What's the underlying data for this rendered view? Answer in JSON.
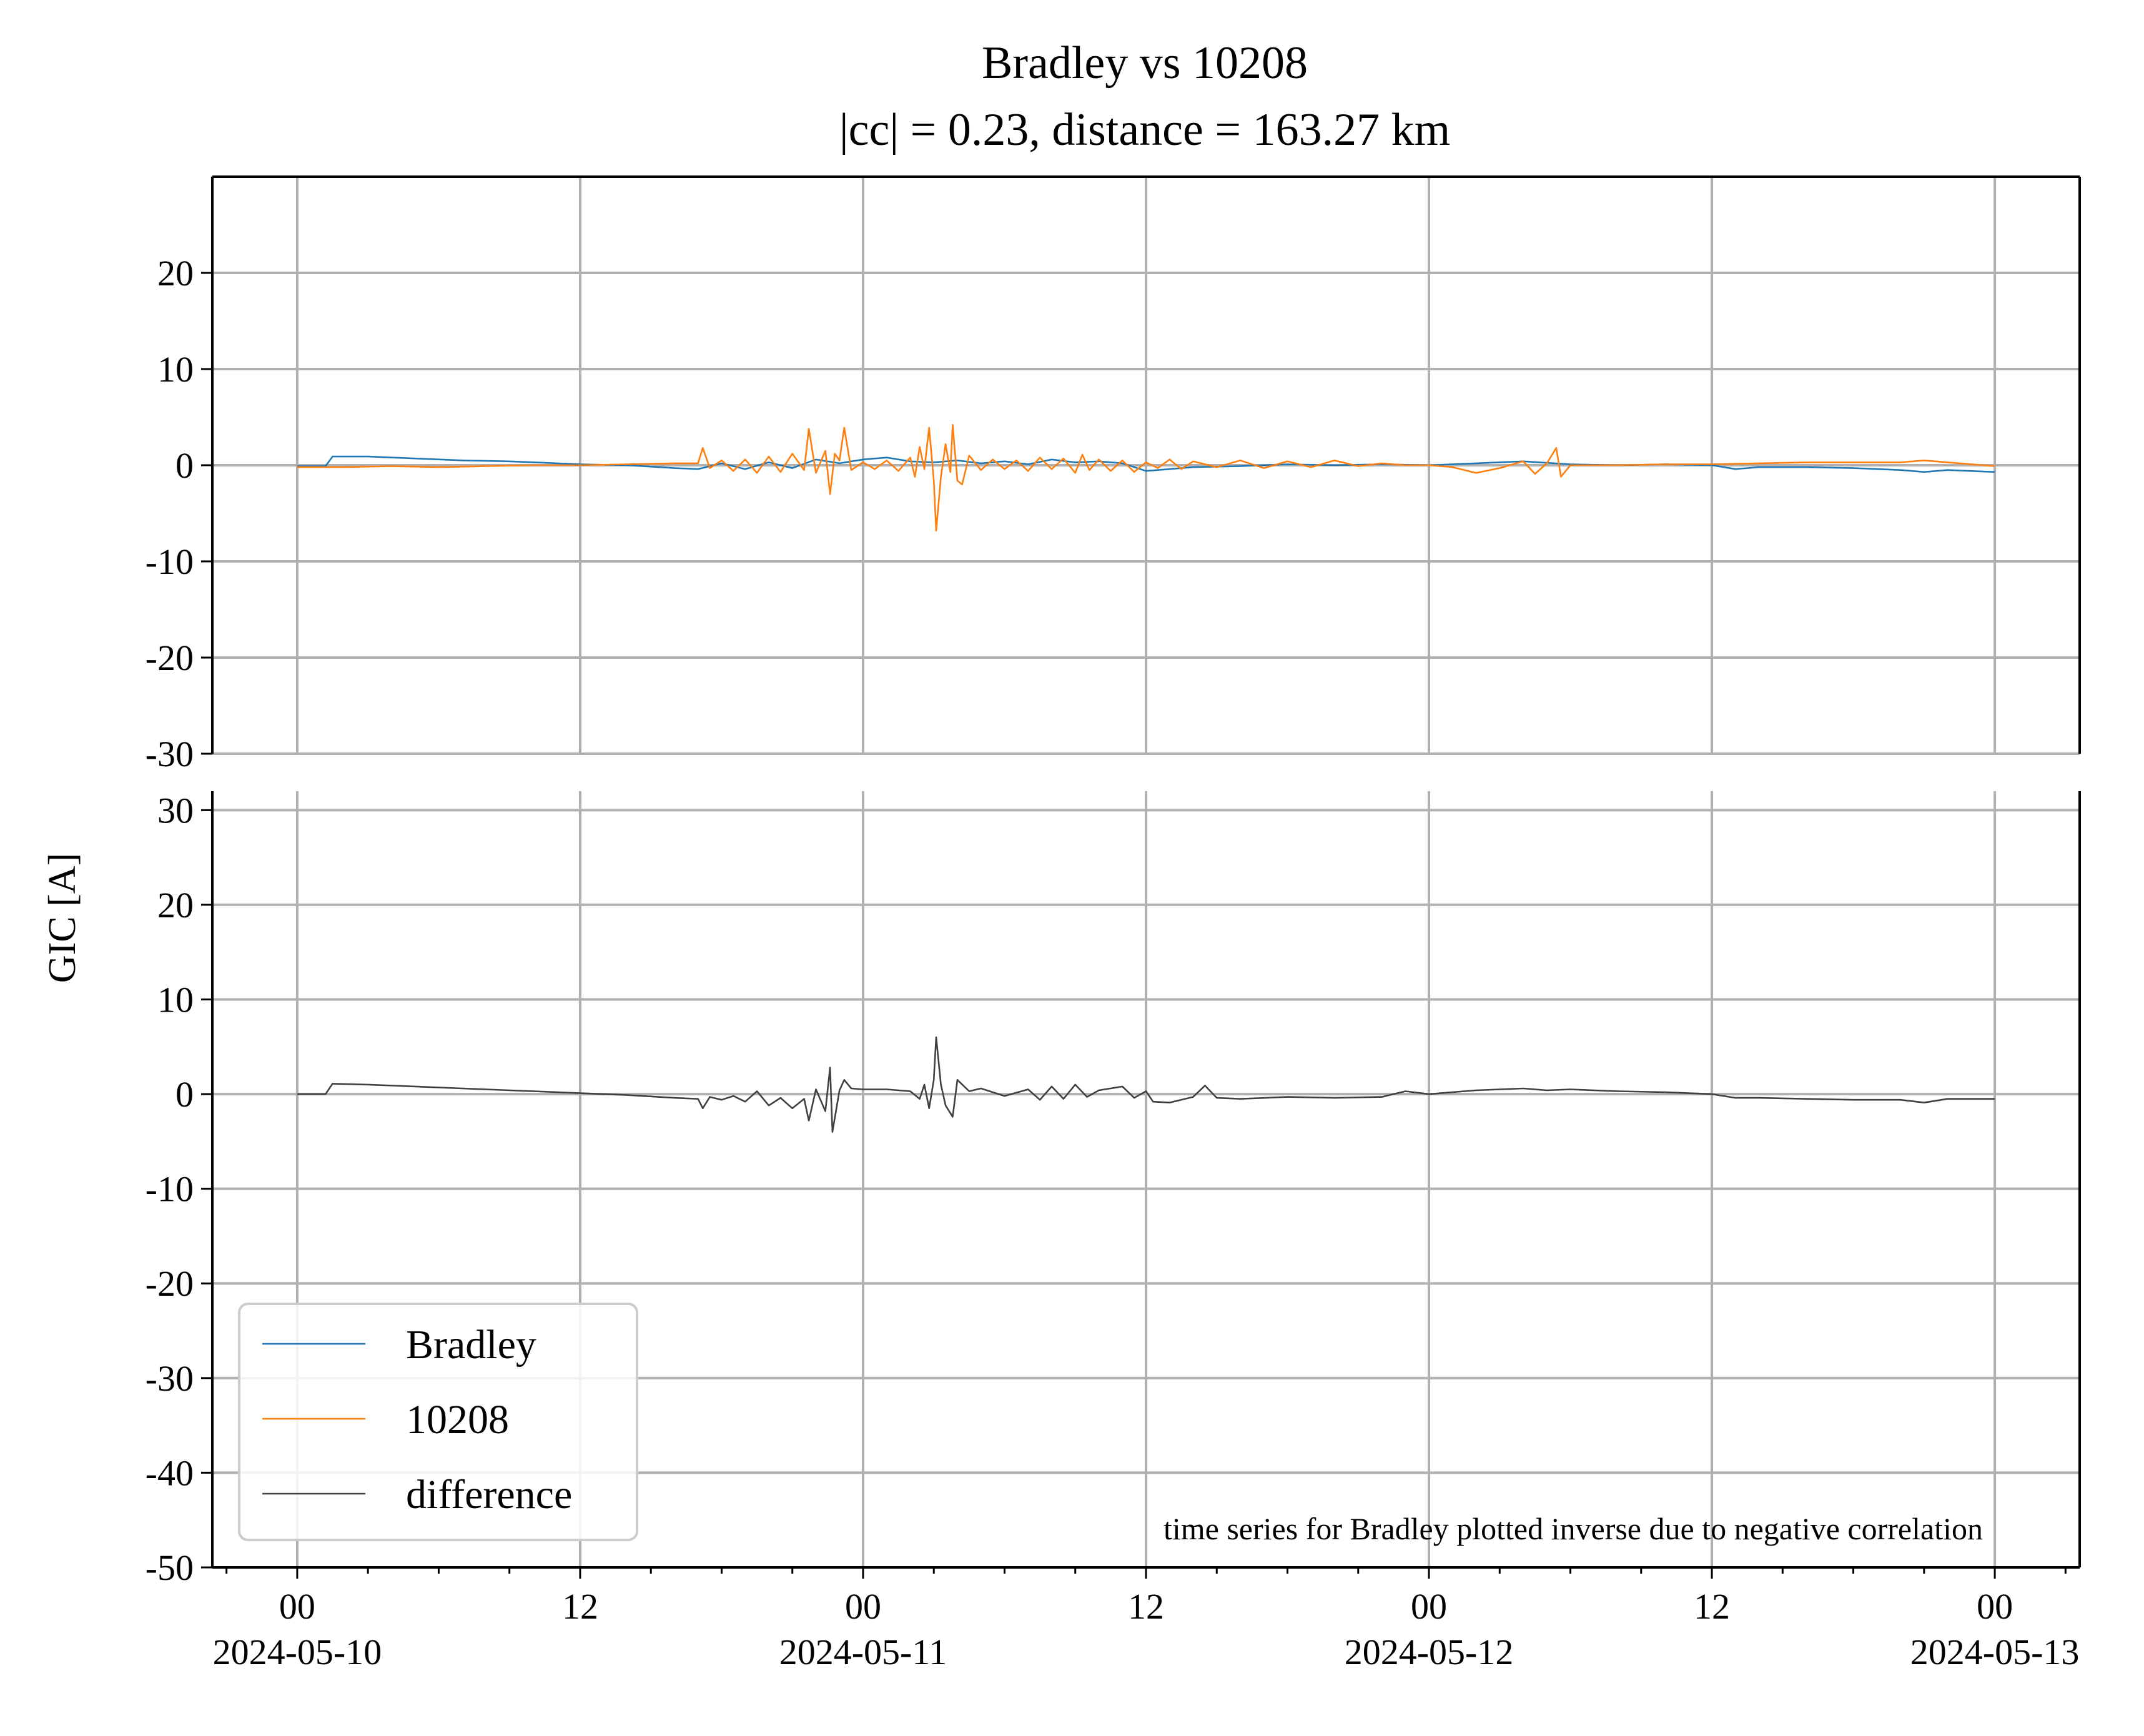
{
  "chart_data": {
    "type": "line",
    "title": "Bradley vs 10208",
    "subtitle": "|cc| = 0.23, distance = 163.27 km",
    "ylabel": "GIC [A]",
    "xlabel": "",
    "grid": true,
    "x_ticks": [
      {
        "time": "00",
        "date": "2024-05-10",
        "hours": 0
      },
      {
        "time": "12",
        "date": "",
        "hours": 12
      },
      {
        "time": "00",
        "date": "2024-05-11",
        "hours": 24
      },
      {
        "time": "12",
        "date": "",
        "hours": 36
      },
      {
        "time": "00",
        "date": "2024-05-12",
        "hours": 48
      },
      {
        "time": "12",
        "date": "",
        "hours": 60
      },
      {
        "time": "00",
        "date": "2024-05-13",
        "hours": 72
      }
    ],
    "xlim_hours": [
      -3.6,
      75.6
    ],
    "panels": [
      {
        "id": "top",
        "ylim": [
          -30,
          30
        ],
        "y_ticks": [
          20,
          10,
          0,
          -10,
          -20,
          -30
        ],
        "series": [
          {
            "name": "Bradley",
            "color": "#1f77b4",
            "points": [
              [
                0,
                -0.1
              ],
              [
                1.2,
                -0.1
              ],
              [
                1.5,
                0.9
              ],
              [
                3,
                0.9
              ],
              [
                5,
                0.7
              ],
              [
                7,
                0.5
              ],
              [
                9,
                0.4
              ],
              [
                11,
                0.2
              ],
              [
                12,
                0.1
              ],
              [
                14,
                0.0
              ],
              [
                16,
                -0.3
              ],
              [
                17,
                -0.4
              ],
              [
                18,
                0.2
              ],
              [
                19,
                -0.4
              ],
              [
                20,
                0.3
              ],
              [
                21,
                -0.3
              ],
              [
                22,
                0.6
              ],
              [
                23,
                0.2
              ],
              [
                24,
                0.6
              ],
              [
                25,
                0.8
              ],
              [
                26,
                0.4
              ],
              [
                27,
                0.3
              ],
              [
                28,
                0.5
              ],
              [
                29,
                0.2
              ],
              [
                30,
                0.4
              ],
              [
                31,
                0.1
              ],
              [
                32,
                0.6
              ],
              [
                33,
                0.3
              ],
              [
                34,
                0.4
              ],
              [
                35,
                0.2
              ],
              [
                36,
                -0.6
              ],
              [
                37,
                -0.4
              ],
              [
                38,
                -0.2
              ],
              [
                40,
                -0.1
              ],
              [
                42,
                0.1
              ],
              [
                44,
                0.0
              ],
              [
                46,
                0.1
              ],
              [
                48,
                0.0
              ],
              [
                50,
                0.2
              ],
              [
                52,
                0.4
              ],
              [
                54,
                0.1
              ],
              [
                56,
                0.0
              ],
              [
                58,
                0.1
              ],
              [
                60,
                0.0
              ],
              [
                61,
                -0.4
              ],
              [
                62,
                -0.2
              ],
              [
                64,
                -0.2
              ],
              [
                66,
                -0.3
              ],
              [
                68,
                -0.5
              ],
              [
                69,
                -0.7
              ],
              [
                70,
                -0.5
              ],
              [
                72,
                -0.7
              ]
            ]
          },
          {
            "name": "10208",
            "color": "#ff7f0e",
            "points": [
              [
                0,
                -0.2
              ],
              [
                2,
                -0.2
              ],
              [
                4,
                -0.1
              ],
              [
                6,
                -0.2
              ],
              [
                8,
                -0.1
              ],
              [
                10,
                0.0
              ],
              [
                12,
                0.0
              ],
              [
                14,
                0.1
              ],
              [
                16,
                0.2
              ],
              [
                17,
                0.2
              ],
              [
                17.2,
                1.8
              ],
              [
                17.5,
                -0.3
              ],
              [
                18,
                0.5
              ],
              [
                18.5,
                -0.6
              ],
              [
                19,
                0.6
              ],
              [
                19.5,
                -0.8
              ],
              [
                20,
                0.9
              ],
              [
                20.5,
                -0.7
              ],
              [
                21,
                1.2
              ],
              [
                21.5,
                -0.5
              ],
              [
                21.7,
                3.8
              ],
              [
                22,
                -0.8
              ],
              [
                22.4,
                1.5
              ],
              [
                22.6,
                -3.0
              ],
              [
                22.8,
                1.2
              ],
              [
                23,
                0.5
              ],
              [
                23.2,
                3.9
              ],
              [
                23.5,
                -0.5
              ],
              [
                24,
                0.3
              ],
              [
                24.5,
                -0.4
              ],
              [
                25,
                0.5
              ],
              [
                25.5,
                -0.6
              ],
              [
                26,
                0.8
              ],
              [
                26.2,
                -1.2
              ],
              [
                26.4,
                1.9
              ],
              [
                26.6,
                -0.4
              ],
              [
                26.8,
                3.9
              ],
              [
                27,
                -1.6
              ],
              [
                27.1,
                -6.8
              ],
              [
                27.3,
                -1.2
              ],
              [
                27.5,
                2.2
              ],
              [
                27.7,
                -0.7
              ],
              [
                27.8,
                4.2
              ],
              [
                28,
                -1.6
              ],
              [
                28.2,
                -2.0
              ],
              [
                28.5,
                1.0
              ],
              [
                29,
                -0.5
              ],
              [
                29.5,
                0.6
              ],
              [
                30,
                -0.4
              ],
              [
                30.5,
                0.5
              ],
              [
                31,
                -0.6
              ],
              [
                31.5,
                0.8
              ],
              [
                32,
                -0.4
              ],
              [
                32.5,
                0.7
              ],
              [
                33,
                -0.8
              ],
              [
                33.3,
                1.1
              ],
              [
                33.6,
                -0.5
              ],
              [
                34,
                0.6
              ],
              [
                34.5,
                -0.6
              ],
              [
                35,
                0.5
              ],
              [
                35.5,
                -0.7
              ],
              [
                36,
                0.3
              ],
              [
                36.5,
                -0.3
              ],
              [
                37,
                0.6
              ],
              [
                37.5,
                -0.4
              ],
              [
                38,
                0.4
              ],
              [
                39,
                -0.2
              ],
              [
                40,
                0.5
              ],
              [
                41,
                -0.3
              ],
              [
                42,
                0.4
              ],
              [
                43,
                -0.2
              ],
              [
                44,
                0.5
              ],
              [
                45,
                -0.1
              ],
              [
                46,
                0.2
              ],
              [
                47,
                0.0
              ],
              [
                48,
                0.0
              ],
              [
                49,
                -0.2
              ],
              [
                50,
                -0.8
              ],
              [
                51,
                -0.3
              ],
              [
                52,
                0.4
              ],
              [
                52.5,
                -0.9
              ],
              [
                53,
                0.2
              ],
              [
                53.4,
                1.8
              ],
              [
                53.6,
                -1.2
              ],
              [
                54,
                0.0
              ],
              [
                56,
                0.0
              ],
              [
                58,
                0.1
              ],
              [
                60,
                0.1
              ],
              [
                62,
                0.2
              ],
              [
                64,
                0.3
              ],
              [
                66,
                0.3
              ],
              [
                68,
                0.3
              ],
              [
                69,
                0.5
              ],
              [
                70,
                0.3
              ],
              [
                72,
                -0.1
              ]
            ]
          }
        ]
      },
      {
        "id": "bottom",
        "ylim": [
          -50,
          32
        ],
        "y_ticks": [
          30,
          20,
          10,
          0,
          -10,
          -20,
          -30,
          -40,
          -50
        ],
        "series": [
          {
            "name": "difference",
            "color": "#404040",
            "points": [
              [
                0,
                0.0
              ],
              [
                1.2,
                0.0
              ],
              [
                1.5,
                1.1
              ],
              [
                3,
                1.0
              ],
              [
                5,
                0.8
              ],
              [
                7,
                0.6
              ],
              [
                9,
                0.4
              ],
              [
                11,
                0.2
              ],
              [
                12,
                0.1
              ],
              [
                14,
                -0.1
              ],
              [
                16,
                -0.4
              ],
              [
                17,
                -0.5
              ],
              [
                17.2,
                -1.5
              ],
              [
                17.5,
                -0.3
              ],
              [
                18,
                -0.6
              ],
              [
                18.5,
                -0.2
              ],
              [
                19,
                -0.8
              ],
              [
                19.5,
                0.3
              ],
              [
                20,
                -1.2
              ],
              [
                20.5,
                -0.4
              ],
              [
                21,
                -1.5
              ],
              [
                21.5,
                -0.5
              ],
              [
                21.7,
                -2.8
              ],
              [
                22,
                0.5
              ],
              [
                22.4,
                -1.8
              ],
              [
                22.6,
                2.8
              ],
              [
                22.7,
                -4.0
              ],
              [
                23,
                0.4
              ],
              [
                23.2,
                1.5
              ],
              [
                23.5,
                0.6
              ],
              [
                24,
                0.5
              ],
              [
                25,
                0.5
              ],
              [
                26,
                0.3
              ],
              [
                26.4,
                -0.5
              ],
              [
                26.6,
                1.0
              ],
              [
                26.8,
                -1.5
              ],
              [
                27,
                1.5
              ],
              [
                27.1,
                6.0
              ],
              [
                27.3,
                1.0
              ],
              [
                27.5,
                -1.2
              ],
              [
                27.8,
                -2.4
              ],
              [
                28,
                1.5
              ],
              [
                28.5,
                0.3
              ],
              [
                29,
                0.6
              ],
              [
                30,
                -0.2
              ],
              [
                31,
                0.5
              ],
              [
                31.5,
                -0.6
              ],
              [
                32,
                0.8
              ],
              [
                32.5,
                -0.5
              ],
              [
                33,
                1.0
              ],
              [
                33.5,
                -0.3
              ],
              [
                34,
                0.4
              ],
              [
                35,
                0.8
              ],
              [
                35.5,
                -0.4
              ],
              [
                36,
                0.3
              ],
              [
                36.3,
                -0.8
              ],
              [
                37,
                -0.9
              ],
              [
                38,
                -0.3
              ],
              [
                38.5,
                0.9
              ],
              [
                39,
                -0.4
              ],
              [
                40,
                -0.5
              ],
              [
                42,
                -0.3
              ],
              [
                44,
                -0.4
              ],
              [
                46,
                -0.3
              ],
              [
                47,
                0.3
              ],
              [
                48,
                0.0
              ],
              [
                50,
                0.4
              ],
              [
                52,
                0.6
              ],
              [
                53,
                0.4
              ],
              [
                54,
                0.5
              ],
              [
                56,
                0.3
              ],
              [
                58,
                0.2
              ],
              [
                60,
                0.0
              ],
              [
                61,
                -0.4
              ],
              [
                62,
                -0.4
              ],
              [
                64,
                -0.5
              ],
              [
                66,
                -0.6
              ],
              [
                68,
                -0.6
              ],
              [
                69,
                -0.9
              ],
              [
                70,
                -0.5
              ],
              [
                72,
                -0.5
              ]
            ]
          }
        ]
      }
    ],
    "legend": {
      "placement": "lower-left",
      "entries": [
        {
          "label": "Bradley",
          "color": "#1f77b4"
        },
        {
          "label": "10208",
          "color": "#ff7f0e"
        },
        {
          "label": "difference",
          "color": "#404040"
        }
      ]
    },
    "annotation": "time series for Bradley plotted inverse due to negative correlation"
  }
}
